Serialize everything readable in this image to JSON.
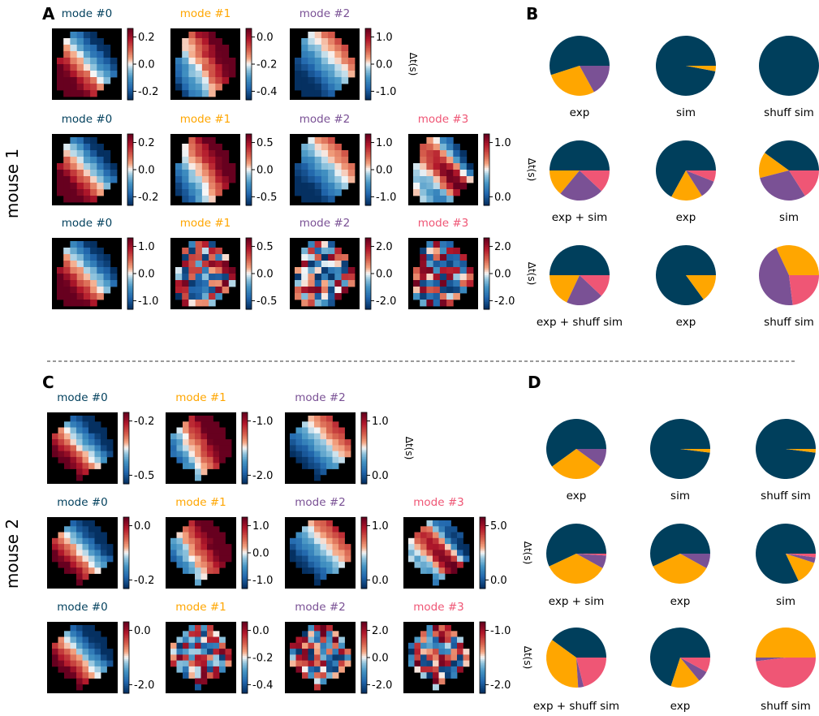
{
  "panel_labels": [
    "A",
    "B",
    "C",
    "D"
  ],
  "mouse_labels": [
    "mouse 1",
    "mouse 2"
  ],
  "colorbar_label": "Δt(s)",
  "mode_colors": [
    "#003f5c",
    "#ffa600",
    "#7a5195",
    "#ef5675"
  ],
  "mode_titles": [
    "mode #0",
    "mode #1",
    "mode #2",
    "mode #3"
  ],
  "chart_data": [
    {
      "type": "heatmap",
      "group": "mouse 1",
      "rows": [
        {
          "modes": [
            {
              "title": "mode #0",
              "ticks": [
                "0.2",
                "0.0",
                "-0.2"
              ]
            },
            {
              "title": "mode #1",
              "ticks": [
                "0.0",
                "-0.2",
                "-0.4"
              ]
            },
            {
              "title": "mode #2",
              "ticks": [
                "1.0",
                "0.0",
                "-1.0"
              ],
              "cbar_label": "Δt(s)"
            }
          ]
        },
        {
          "modes": [
            {
              "title": "mode #0",
              "ticks": [
                "0.2",
                "0.0",
                "-0.2"
              ]
            },
            {
              "title": "mode #1",
              "ticks": [
                "0.5",
                "0.0",
                "-0.5"
              ]
            },
            {
              "title": "mode #2",
              "ticks": [
                "1.0",
                "0.0",
                "-1.0"
              ]
            },
            {
              "title": "mode #3",
              "ticks": [
                "1.0",
                "0.0"
              ],
              "cbar_label": "Δt(s)"
            }
          ]
        },
        {
          "modes": [
            {
              "title": "mode #0",
              "ticks": [
                "1.0",
                "0.0",
                "-1.0"
              ]
            },
            {
              "title": "mode #1",
              "ticks": [
                "0.5",
                "0.0",
                "-0.5"
              ]
            },
            {
              "title": "mode #2",
              "ticks": [
                "2.0",
                "0.0",
                "-2.0"
              ]
            },
            {
              "title": "mode #3",
              "ticks": [
                "2.0",
                "0.0",
                "-2.0"
              ],
              "cbar_label": "Δt(s)"
            }
          ]
        }
      ]
    },
    {
      "type": "pie",
      "group": "mouse 1",
      "rows": [
        [
          {
            "label": "exp",
            "values": [
              0.55,
              0.28,
              0.17,
              0.0
            ]
          },
          {
            "label": "sim",
            "values": [
              0.97,
              0.03,
              0.0,
              0.0
            ]
          },
          {
            "label": "shuff sim",
            "values": [
              1.0,
              0.0,
              0.0,
              0.0
            ]
          }
        ],
        [
          {
            "label": "exp + sim",
            "values": [
              0.5,
              0.14,
              0.24,
              0.12
            ]
          },
          {
            "label": "exp",
            "values": [
              0.67,
              0.17,
              0.1,
              0.06
            ]
          },
          {
            "label": "sim",
            "values": [
              0.4,
              0.14,
              0.3,
              0.16
            ]
          }
        ],
        [
          {
            "label": "exp + shuff sim",
            "values": [
              0.5,
              0.18,
              0.2,
              0.12
            ]
          },
          {
            "label": "exp",
            "values": [
              0.85,
              0.15,
              0.0,
              0.0
            ]
          },
          {
            "label": "shuff sim",
            "values": [
              0.0,
              0.32,
              0.45,
              0.23
            ]
          }
        ]
      ]
    },
    {
      "type": "heatmap",
      "group": "mouse 2",
      "rows": [
        {
          "modes": [
            {
              "title": "mode #0",
              "ticks": [
                "-0.2",
                "-0.5"
              ]
            },
            {
              "title": "mode #1",
              "ticks": [
                "-1.0",
                "-2.0"
              ]
            },
            {
              "title": "mode #2",
              "ticks": [
                "1.0",
                "0.0"
              ],
              "cbar_label": "Δt(s)"
            }
          ]
        },
        {
          "modes": [
            {
              "title": "mode #0",
              "ticks": [
                "0.0",
                "-0.2"
              ]
            },
            {
              "title": "mode #1",
              "ticks": [
                "1.0",
                "0.0",
                "-1.0"
              ]
            },
            {
              "title": "mode #2",
              "ticks": [
                "1.0",
                "0.0"
              ]
            },
            {
              "title": "mode #3",
              "ticks": [
                "5.0",
                "0.0"
              ],
              "cbar_label": "Δt(s)"
            }
          ]
        },
        {
          "modes": [
            {
              "title": "mode #0",
              "ticks": [
                "0.0",
                "-2.0"
              ]
            },
            {
              "title": "mode #1",
              "ticks": [
                "0.0",
                "-0.2",
                "-0.4"
              ]
            },
            {
              "title": "mode #2",
              "ticks": [
                "2.0",
                "0.0",
                "-2.0"
              ]
            },
            {
              "title": "mode #3",
              "ticks": [
                "-1.0",
                "-2.0"
              ],
              "cbar_label": "Δt(s)"
            }
          ]
        }
      ]
    },
    {
      "type": "pie",
      "group": "mouse 2",
      "rows": [
        [
          {
            "label": "exp",
            "values": [
              0.6,
              0.3,
              0.1,
              0.0
            ]
          },
          {
            "label": "sim",
            "values": [
              0.98,
              0.02,
              0.0,
              0.0
            ]
          },
          {
            "label": "shuff sim",
            "values": [
              0.98,
              0.02,
              0.0,
              0.0
            ]
          }
        ],
        [
          {
            "label": "exp + sim",
            "values": [
              0.57,
              0.35,
              0.07,
              0.01
            ]
          },
          {
            "label": "exp",
            "values": [
              0.57,
              0.35,
              0.08,
              0.0
            ]
          },
          {
            "label": "sim",
            "values": [
              0.82,
              0.13,
              0.03,
              0.02
            ]
          }
        ],
        [
          {
            "label": "exp + shuff sim",
            "values": [
              0.4,
              0.36,
              0.03,
              0.21
            ]
          },
          {
            "label": "exp",
            "values": [
              0.7,
              0.16,
              0.06,
              0.08
            ]
          },
          {
            "label": "shuff sim",
            "values": [
              0.0,
              0.5,
              0.02,
              0.48
            ]
          }
        ]
      ]
    }
  ]
}
